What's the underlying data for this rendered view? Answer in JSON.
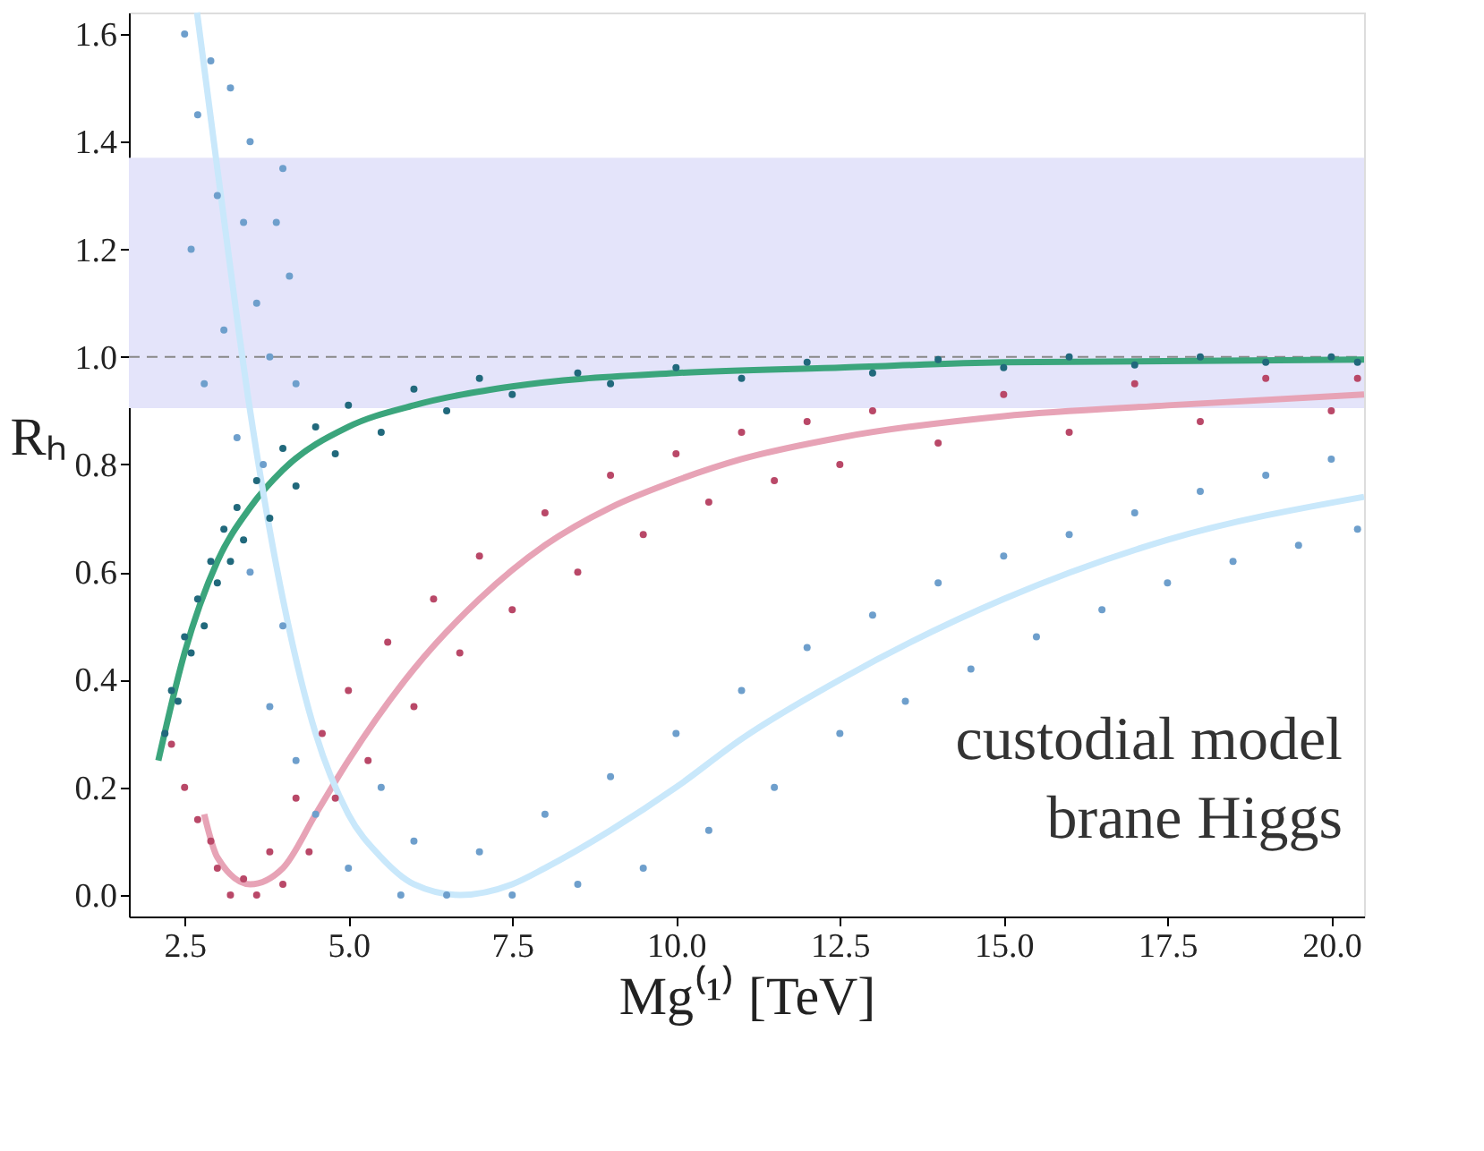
{
  "chart_data": {
    "type": "scatter",
    "xlabel": "Mg⁽¹⁾ [TeV]",
    "ylabel": "Rₕ",
    "xlim": [
      1.65,
      20.5
    ],
    "ylim": [
      -0.04,
      1.64
    ],
    "xticks": [
      2.5,
      {
        "value": 5,
        "label": "5.0"
      },
      7.5,
      {
        "value": 10,
        "label": "10.0"
      },
      12.5,
      {
        "value": 15,
        "label": "15.0"
      },
      17.5,
      {
        "value": 20,
        "label": "20.0"
      }
    ],
    "yticks": [
      {
        "value": 0,
        "label": "0.0"
      },
      0.2,
      0.4,
      0.6,
      0.8,
      {
        "value": 1,
        "label": "1.0"
      },
      1.2,
      1.4,
      1.6
    ],
    "grid": false,
    "bands": [
      {
        "axis": "y",
        "from": 0.905,
        "to": 1.37,
        "color": "#e4e4fa"
      }
    ],
    "ref_lines": [
      {
        "axis": "y",
        "value": 1.0,
        "color": "#888888",
        "line_style": "dashed"
      }
    ],
    "annotations": [
      "custodial model",
      "brane Higgs"
    ],
    "series": [
      {
        "marker": "circle",
        "color": "#21697c",
        "x": [
          2.2,
          2.3,
          2.4,
          2.5,
          2.6,
          2.7,
          2.8,
          2.9,
          3.0,
          3.1,
          3.2,
          3.3,
          3.4,
          3.6,
          3.8,
          4.0,
          4.2,
          4.5,
          4.8,
          5.0,
          5.5,
          6.0,
          6.5,
          7.0,
          7.5,
          8.5,
          9.0,
          10,
          11,
          12,
          13,
          14,
          15,
          16,
          17,
          18,
          19,
          20,
          20.4
        ],
        "values": [
          0.3,
          0.38,
          0.36,
          0.48,
          0.45,
          0.55,
          0.5,
          0.62,
          0.58,
          0.68,
          0.62,
          0.72,
          0.66,
          0.77,
          0.7,
          0.83,
          0.76,
          0.87,
          0.82,
          0.91,
          0.86,
          0.94,
          0.9,
          0.96,
          0.93,
          0.97,
          0.95,
          0.98,
          0.96,
          0.99,
          0.97,
          0.995,
          0.98,
          1.0,
          0.985,
          1.0,
          0.99,
          1.0,
          0.99
        ]
      },
      {
        "marker": "circle",
        "color": "#b94868",
        "x": [
          2.3,
          2.5,
          2.7,
          2.9,
          3.0,
          3.2,
          3.4,
          3.6,
          3.8,
          4.0,
          4.2,
          4.4,
          4.6,
          4.8,
          5.0,
          5.3,
          5.6,
          6.0,
          6.3,
          6.7,
          7.0,
          7.5,
          8.0,
          8.5,
          9.0,
          9.5,
          10,
          10.5,
          11,
          11.5,
          12,
          12.5,
          13,
          14,
          15,
          16,
          17,
          18,
          19,
          20,
          20.4
        ],
        "values": [
          0.28,
          0.2,
          0.14,
          0.1,
          0.05,
          0.0,
          0.03,
          0.0,
          0.08,
          0.02,
          0.18,
          0.08,
          0.3,
          0.18,
          0.38,
          0.25,
          0.47,
          0.35,
          0.55,
          0.45,
          0.63,
          0.53,
          0.71,
          0.6,
          0.78,
          0.67,
          0.82,
          0.73,
          0.86,
          0.77,
          0.88,
          0.8,
          0.9,
          0.84,
          0.93,
          0.86,
          0.95,
          0.88,
          0.96,
          0.9,
          0.96
        ]
      },
      {
        "marker": "circle",
        "color": "#6e9fcc",
        "x": [
          2.5,
          2.6,
          2.7,
          2.8,
          2.9,
          3.0,
          3.1,
          3.2,
          3.3,
          3.4,
          3.5,
          3.6,
          3.7,
          3.8,
          3.9,
          4.0,
          4.1,
          4.2,
          3.5,
          3.8,
          4.0,
          4.2,
          4.5,
          5.0,
          5.5,
          5.8,
          6.0,
          6.5,
          7.0,
          7.5,
          8.0,
          8.5,
          9.0,
          9.5,
          10,
          10.5,
          11,
          11.5,
          12,
          12.5,
          13,
          13.5,
          14,
          14.5,
          15,
          15.5,
          16,
          16.5,
          17,
          17.5,
          18,
          18.5,
          19,
          19.5,
          20,
          20.4
        ],
        "values": [
          1.6,
          1.2,
          1.45,
          0.95,
          1.55,
          1.3,
          1.05,
          1.5,
          0.85,
          1.25,
          1.4,
          1.1,
          0.8,
          1.0,
          1.25,
          1.35,
          1.15,
          0.95,
          0.6,
          0.35,
          0.5,
          0.25,
          0.15,
          0.05,
          0.2,
          0.0,
          0.1,
          0.0,
          0.08,
          0.0,
          0.15,
          0.02,
          0.22,
          0.05,
          0.3,
          0.12,
          0.38,
          0.2,
          0.46,
          0.3,
          0.52,
          0.36,
          0.58,
          0.42,
          0.63,
          0.48,
          0.67,
          0.53,
          0.71,
          0.58,
          0.75,
          0.62,
          0.78,
          0.65,
          0.81,
          0.68
        ]
      },
      {
        "type": "line",
        "color": "#3ba57c",
        "x": [
          2.1,
          2.5,
          3.0,
          3.5,
          4.0,
          5,
          6,
          7.5,
          10,
          12.5,
          15,
          20.5
        ],
        "values": [
          0.25,
          0.45,
          0.62,
          0.72,
          0.79,
          0.87,
          0.91,
          0.945,
          0.97,
          0.98,
          0.99,
          0.995
        ]
      },
      {
        "type": "line",
        "color": "#e7a3b6",
        "x": [
          2.8,
          3.0,
          3.5,
          4.0,
          4.5,
          5.0,
          6,
          7,
          8,
          9,
          10,
          11,
          12.5,
          15,
          17.5,
          20.5
        ],
        "values": [
          0.15,
          0.07,
          0.02,
          0.05,
          0.15,
          0.25,
          0.42,
          0.55,
          0.65,
          0.72,
          0.77,
          0.81,
          0.85,
          0.89,
          0.91,
          0.93
        ]
      },
      {
        "type": "line",
        "color": "#c9e8fb",
        "x": [
          2.69,
          3.0,
          3.5,
          4.0,
          4.5,
          5.0,
          5.5,
          6,
          6.7,
          7.5,
          8,
          9,
          10,
          11,
          12.5,
          15,
          17.5,
          20.5
        ],
        "values": [
          1.64,
          1.35,
          0.9,
          0.55,
          0.3,
          0.15,
          0.07,
          0.02,
          0.0,
          0.02,
          0.05,
          0.12,
          0.2,
          0.29,
          0.4,
          0.55,
          0.66,
          0.74
        ]
      }
    ]
  }
}
